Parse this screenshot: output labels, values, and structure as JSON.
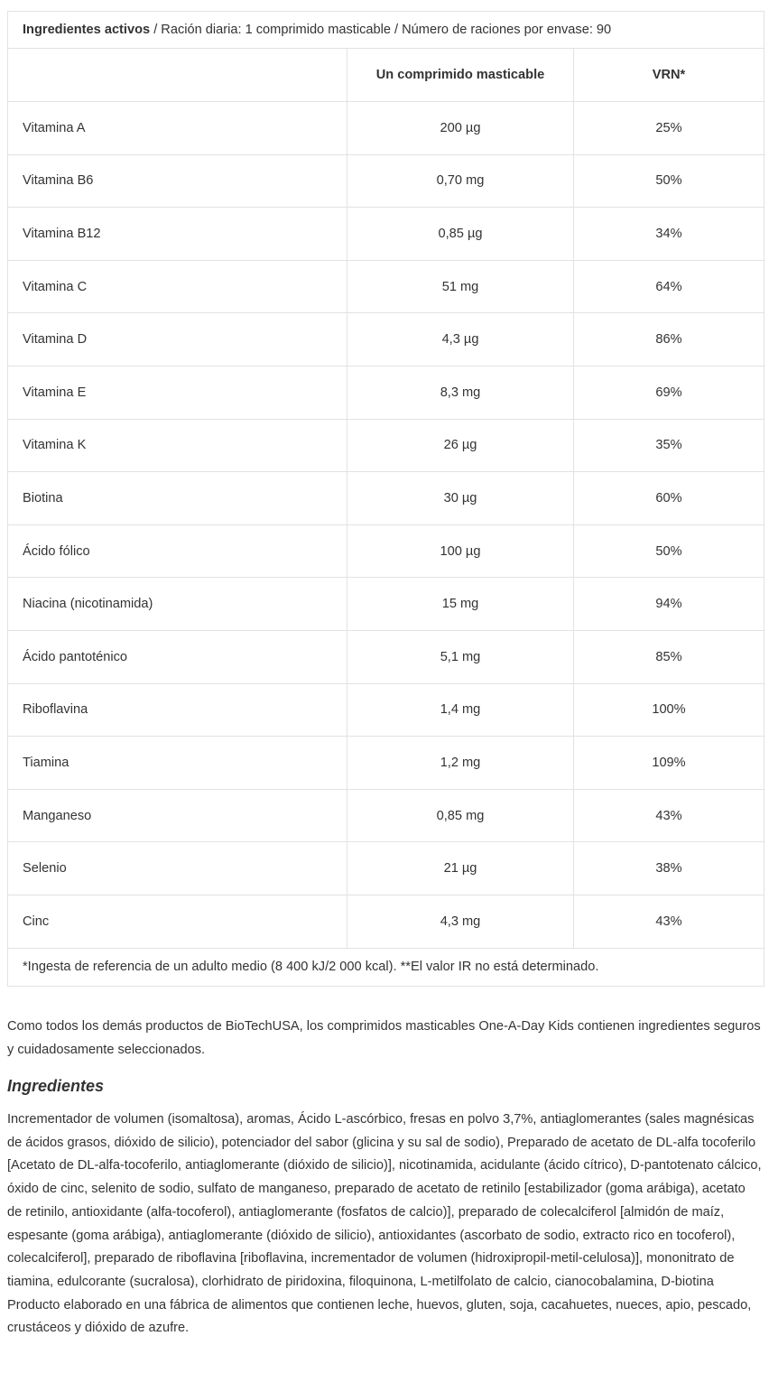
{
  "table": {
    "title": {
      "bold": "Ingredientes activos",
      "rest": "/ Ración diaria: 1 comprimido masticable / Número de raciones por envase: 90"
    },
    "columns": [
      "Un comprimido masticable",
      "VRN*"
    ],
    "rows": [
      [
        "Vitamina A",
        "200 µg",
        "25%"
      ],
      [
        "Vitamina B6",
        "0,70 mg",
        "50%"
      ],
      [
        "Vitamina B12",
        "0,85 µg",
        "34%"
      ],
      [
        "Vitamina C",
        "51 mg",
        "64%"
      ],
      [
        "Vitamina D",
        "4,3 µg",
        "86%"
      ],
      [
        "Vitamina E",
        "8,3 mg",
        "69%"
      ],
      [
        "Vitamina K",
        "26 µg",
        "35%"
      ],
      [
        "Biotina",
        "30 µg",
        "60%"
      ],
      [
        "Ácido fólico",
        "100 µg",
        "50%"
      ],
      [
        "Niacina (nicotinamida)",
        "15 mg",
        "94%"
      ],
      [
        "Ácido pantoténico",
        "5,1 mg",
        "85%"
      ],
      [
        "Riboflavina",
        "1,4 mg",
        "100%"
      ],
      [
        "Tiamina",
        "1,2 mg",
        "109%"
      ],
      [
        "Manganeso",
        "0,85 mg",
        "43%"
      ],
      [
        "Selenio",
        "21 µg",
        "38%"
      ],
      [
        "Cinc",
        "4,3 mg",
        "43%"
      ]
    ],
    "footnote": "*Ingesta de referencia de un adulto medio (8 400 kJ/2 000 kcal). **El valor IR no está determinado."
  },
  "intro": "Como todos los demás productos de BioTechUSA, los comprimidos masticables One-A-Day Kids contienen ingredientes seguros y cuidadosamente seleccionados.",
  "ingredients": {
    "heading": "Ingredientes",
    "text": "Incrementador de volumen (isomaltosa), aromas, Ácido L-ascórbico, fresas en polvo 3,7%, antiaglomerantes (sales magnésicas de ácidos grasos, dióxido de silicio), potenciador del sabor (glicina y su sal de sodio), Preparado de acetato de DL-alfa tocoferilo [Acetato de DL-alfa-tocoferilo, antiaglomerante (dióxido de silicio)], nicotinamida, acidulante (ácido cítrico), D-pantotenato cálcico, óxido de cinc, selenito de sodio, sulfato de manganeso, preparado de acetato de retinilo [estabilizador (goma arábiga), acetato de retinilo, antioxidante (alfa-tocoferol), antiaglomerante (fosfatos de calcio)], preparado de colecalciferol [almidón de maíz, espesante (goma arábiga), antiaglomerante (dióxido de silicio), antioxidantes (ascorbato de sodio, extracto rico en tocoferol), colecalciferol], preparado de riboflavina [riboflavina, incrementador de volumen (hidroxipropil-metil-celulosa)], mononitrato de tiamina, edulcorante (sucralosa), clorhidrato de piridoxina, filoquinona, L-metilfolato de calcio, cianocobalamina, D-biotina",
    "allergens": "Producto elaborado en una fábrica de alimentos que contienen leche, huevos, gluten, soja, cacahuetes, nueces, apio, pescado, crustáceos y dióxido de azufre."
  }
}
